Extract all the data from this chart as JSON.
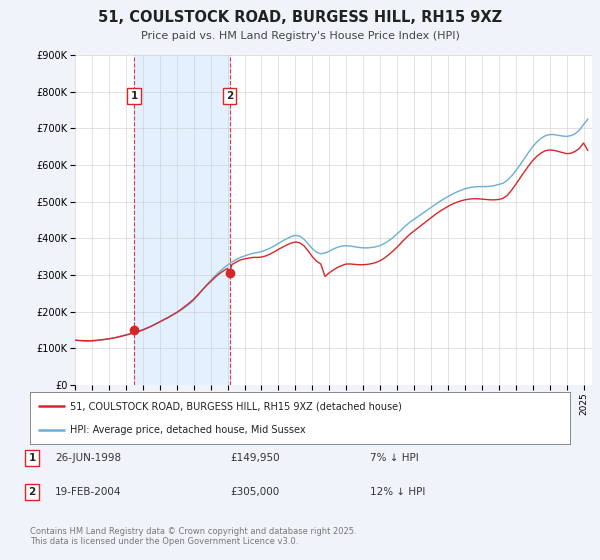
{
  "title": "51, COULSTOCK ROAD, BURGESS HILL, RH15 9XZ",
  "subtitle": "Price paid vs. HM Land Registry's House Price Index (HPI)",
  "bg_color": "#f0f4fa",
  "plot_bg_color": "#ffffff",
  "ylim": [
    0,
    900000
  ],
  "yticks": [
    0,
    100000,
    200000,
    300000,
    400000,
    500000,
    600000,
    700000,
    800000,
    900000
  ],
  "ytick_labels": [
    "£0",
    "£100K",
    "£200K",
    "£300K",
    "£400K",
    "£500K",
    "£600K",
    "£700K",
    "£800K",
    "£900K"
  ],
  "xlim_start": 1995.0,
  "xlim_end": 2025.5,
  "sale1_x": 1998.48,
  "sale1_y": 149950,
  "sale1_label": "1",
  "sale1_date": "26-JUN-1998",
  "sale1_price": "£149,950",
  "sale1_hpi": "7% ↓ HPI",
  "sale2_x": 2004.12,
  "sale2_y": 305000,
  "sale2_label": "2",
  "sale2_date": "19-FEB-2004",
  "sale2_price": "£305,000",
  "sale2_hpi": "12% ↓ HPI",
  "legend_line1": "51, COULSTOCK ROAD, BURGESS HILL, RH15 9XZ (detached house)",
  "legend_line2": "HPI: Average price, detached house, Mid Sussex",
  "footer": "Contains HM Land Registry data © Crown copyright and database right 2025.\nThis data is licensed under the Open Government Licence v3.0.",
  "hpi_color": "#6baed6",
  "price_color": "#d62728",
  "shade_color": "#ddeeff",
  "hpi_data": [
    [
      1995.0,
      122000
    ],
    [
      1995.25,
      121000
    ],
    [
      1995.5,
      120000
    ],
    [
      1995.75,
      119500
    ],
    [
      1996.0,
      120000
    ],
    [
      1996.25,
      121000
    ],
    [
      1996.5,
      122500
    ],
    [
      1996.75,
      124000
    ],
    [
      1997.0,
      126000
    ],
    [
      1997.25,
      128000
    ],
    [
      1997.5,
      131000
    ],
    [
      1997.75,
      134000
    ],
    [
      1998.0,
      137000
    ],
    [
      1998.25,
      140000
    ],
    [
      1998.5,
      143000
    ],
    [
      1998.75,
      147000
    ],
    [
      1999.0,
      151000
    ],
    [
      1999.25,
      156000
    ],
    [
      1999.5,
      161000
    ],
    [
      1999.75,
      167000
    ],
    [
      2000.0,
      173000
    ],
    [
      2000.25,
      179000
    ],
    [
      2000.5,
      185000
    ],
    [
      2000.75,
      191000
    ],
    [
      2001.0,
      197000
    ],
    [
      2001.25,
      204000
    ],
    [
      2001.5,
      212000
    ],
    [
      2001.75,
      221000
    ],
    [
      2002.0,
      231000
    ],
    [
      2002.25,
      244000
    ],
    [
      2002.5,
      258000
    ],
    [
      2002.75,
      272000
    ],
    [
      2003.0,
      285000
    ],
    [
      2003.25,
      297000
    ],
    [
      2003.5,
      308000
    ],
    [
      2003.75,
      318000
    ],
    [
      2004.0,
      327000
    ],
    [
      2004.25,
      335000
    ],
    [
      2004.5,
      342000
    ],
    [
      2004.75,
      348000
    ],
    [
      2005.0,
      352000
    ],
    [
      2005.25,
      356000
    ],
    [
      2005.5,
      359000
    ],
    [
      2005.75,
      361000
    ],
    [
      2006.0,
      364000
    ],
    [
      2006.25,
      368000
    ],
    [
      2006.5,
      373000
    ],
    [
      2006.75,
      379000
    ],
    [
      2007.0,
      386000
    ],
    [
      2007.25,
      393000
    ],
    [
      2007.5,
      399000
    ],
    [
      2007.75,
      405000
    ],
    [
      2008.0,
      408000
    ],
    [
      2008.25,
      406000
    ],
    [
      2008.5,
      398000
    ],
    [
      2008.75,
      385000
    ],
    [
      2009.0,
      372000
    ],
    [
      2009.25,
      362000
    ],
    [
      2009.5,
      358000
    ],
    [
      2009.75,
      360000
    ],
    [
      2010.0,
      365000
    ],
    [
      2010.25,
      371000
    ],
    [
      2010.5,
      376000
    ],
    [
      2010.75,
      379000
    ],
    [
      2011.0,
      380000
    ],
    [
      2011.25,
      379000
    ],
    [
      2011.5,
      377000
    ],
    [
      2011.75,
      375000
    ],
    [
      2012.0,
      374000
    ],
    [
      2012.25,
      374000
    ],
    [
      2012.5,
      375000
    ],
    [
      2012.75,
      377000
    ],
    [
      2013.0,
      380000
    ],
    [
      2013.25,
      386000
    ],
    [
      2013.5,
      393000
    ],
    [
      2013.75,
      402000
    ],
    [
      2014.0,
      412000
    ],
    [
      2014.25,
      423000
    ],
    [
      2014.5,
      434000
    ],
    [
      2014.75,
      444000
    ],
    [
      2015.0,
      452000
    ],
    [
      2015.25,
      460000
    ],
    [
      2015.5,
      468000
    ],
    [
      2015.75,
      476000
    ],
    [
      2016.0,
      484000
    ],
    [
      2016.25,
      492000
    ],
    [
      2016.5,
      500000
    ],
    [
      2016.75,
      507000
    ],
    [
      2017.0,
      514000
    ],
    [
      2017.25,
      520000
    ],
    [
      2017.5,
      526000
    ],
    [
      2017.75,
      531000
    ],
    [
      2018.0,
      535000
    ],
    [
      2018.25,
      538000
    ],
    [
      2018.5,
      540000
    ],
    [
      2018.75,
      541000
    ],
    [
      2019.0,
      541000
    ],
    [
      2019.25,
      541000
    ],
    [
      2019.5,
      542000
    ],
    [
      2019.75,
      544000
    ],
    [
      2020.0,
      547000
    ],
    [
      2020.25,
      550000
    ],
    [
      2020.5,
      558000
    ],
    [
      2020.75,
      570000
    ],
    [
      2021.0,
      584000
    ],
    [
      2021.25,
      600000
    ],
    [
      2021.5,
      617000
    ],
    [
      2021.75,
      634000
    ],
    [
      2022.0,
      650000
    ],
    [
      2022.25,
      663000
    ],
    [
      2022.5,
      673000
    ],
    [
      2022.75,
      680000
    ],
    [
      2023.0,
      683000
    ],
    [
      2023.25,
      683000
    ],
    [
      2023.5,
      681000
    ],
    [
      2023.75,
      679000
    ],
    [
      2024.0,
      678000
    ],
    [
      2024.25,
      680000
    ],
    [
      2024.5,
      685000
    ],
    [
      2024.75,
      695000
    ],
    [
      2025.0,
      710000
    ],
    [
      2025.25,
      725000
    ]
  ],
  "price_data": [
    [
      1995.0,
      122000
    ],
    [
      1995.25,
      121500
    ],
    [
      1995.5,
      121000
    ],
    [
      1995.75,
      120500
    ],
    [
      1996.0,
      121000
    ],
    [
      1996.25,
      122000
    ],
    [
      1996.5,
      123000
    ],
    [
      1996.75,
      124500
    ],
    [
      1997.0,
      126000
    ],
    [
      1997.25,
      128000
    ],
    [
      1997.5,
      130000
    ],
    [
      1997.75,
      133000
    ],
    [
      1998.0,
      136000
    ],
    [
      1998.25,
      139000
    ],
    [
      1998.48,
      149950
    ],
    [
      1998.5,
      142500
    ],
    [
      1998.75,
      146000
    ],
    [
      1999.0,
      150000
    ],
    [
      1999.25,
      155000
    ],
    [
      1999.5,
      160000
    ],
    [
      1999.75,
      166000
    ],
    [
      2000.0,
      172000
    ],
    [
      2000.25,
      178000
    ],
    [
      2000.5,
      184000
    ],
    [
      2000.75,
      191000
    ],
    [
      2001.0,
      198000
    ],
    [
      2001.25,
      206000
    ],
    [
      2001.5,
      215000
    ],
    [
      2001.75,
      224000
    ],
    [
      2002.0,
      234000
    ],
    [
      2002.25,
      246000
    ],
    [
      2002.5,
      259000
    ],
    [
      2002.75,
      271000
    ],
    [
      2003.0,
      282000
    ],
    [
      2003.25,
      293000
    ],
    [
      2003.5,
      303000
    ],
    [
      2003.75,
      311000
    ],
    [
      2004.0,
      318000
    ],
    [
      2004.12,
      305000
    ],
    [
      2004.25,
      328000
    ],
    [
      2004.5,
      335000
    ],
    [
      2004.75,
      341000
    ],
    [
      2005.0,
      344000
    ],
    [
      2005.25,
      346000
    ],
    [
      2005.5,
      348000
    ],
    [
      2005.75,
      348000
    ],
    [
      2006.0,
      349000
    ],
    [
      2006.25,
      352000
    ],
    [
      2006.5,
      357000
    ],
    [
      2006.75,
      363000
    ],
    [
      2007.0,
      370000
    ],
    [
      2007.25,
      376000
    ],
    [
      2007.5,
      382000
    ],
    [
      2007.75,
      387000
    ],
    [
      2008.0,
      390000
    ],
    [
      2008.25,
      388000
    ],
    [
      2008.5,
      380000
    ],
    [
      2008.75,
      366000
    ],
    [
      2009.0,
      350000
    ],
    [
      2009.25,
      338000
    ],
    [
      2009.5,
      330000
    ],
    [
      2009.75,
      296000
    ],
    [
      2010.0,
      306000
    ],
    [
      2010.25,
      314000
    ],
    [
      2010.5,
      321000
    ],
    [
      2010.75,
      326000
    ],
    [
      2011.0,
      330000
    ],
    [
      2011.25,
      330000
    ],
    [
      2011.5,
      329000
    ],
    [
      2011.75,
      328000
    ],
    [
      2012.0,
      328000
    ],
    [
      2012.25,
      329000
    ],
    [
      2012.5,
      331000
    ],
    [
      2012.75,
      334000
    ],
    [
      2013.0,
      339000
    ],
    [
      2013.25,
      346000
    ],
    [
      2013.5,
      355000
    ],
    [
      2013.75,
      365000
    ],
    [
      2014.0,
      376000
    ],
    [
      2014.25,
      388000
    ],
    [
      2014.5,
      400000
    ],
    [
      2014.75,
      411000
    ],
    [
      2015.0,
      420000
    ],
    [
      2015.25,
      429000
    ],
    [
      2015.5,
      438000
    ],
    [
      2015.75,
      447000
    ],
    [
      2016.0,
      456000
    ],
    [
      2016.25,
      465000
    ],
    [
      2016.5,
      473000
    ],
    [
      2016.75,
      480000
    ],
    [
      2017.0,
      487000
    ],
    [
      2017.25,
      493000
    ],
    [
      2017.5,
      498000
    ],
    [
      2017.75,
      502000
    ],
    [
      2018.0,
      505000
    ],
    [
      2018.25,
      507000
    ],
    [
      2018.5,
      508000
    ],
    [
      2018.75,
      508000
    ],
    [
      2019.0,
      507000
    ],
    [
      2019.25,
      506000
    ],
    [
      2019.5,
      505000
    ],
    [
      2019.75,
      505000
    ],
    [
      2020.0,
      506000
    ],
    [
      2020.25,
      509000
    ],
    [
      2020.5,
      517000
    ],
    [
      2020.75,
      531000
    ],
    [
      2021.0,
      547000
    ],
    [
      2021.25,
      564000
    ],
    [
      2021.5,
      581000
    ],
    [
      2021.75,
      597000
    ],
    [
      2022.0,
      612000
    ],
    [
      2022.25,
      624000
    ],
    [
      2022.5,
      633000
    ],
    [
      2022.75,
      639000
    ],
    [
      2023.0,
      641000
    ],
    [
      2023.25,
      640000
    ],
    [
      2023.5,
      637000
    ],
    [
      2023.75,
      634000
    ],
    [
      2024.0,
      631000
    ],
    [
      2024.25,
      632000
    ],
    [
      2024.5,
      637000
    ],
    [
      2024.75,
      645000
    ],
    [
      2025.0,
      660000
    ],
    [
      2025.25,
      640000
    ]
  ]
}
